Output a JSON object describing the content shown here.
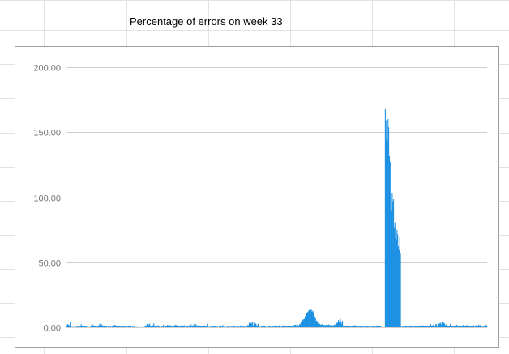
{
  "sheet": {
    "title_cell": "Percentage of errors on week 33"
  },
  "colors": {
    "series": "#1a8fe3",
    "gridline": "#cfcfcf",
    "cell_border": "#e2e2e2",
    "tick_text": "#757575",
    "chart_border": "#9e9e9e"
  },
  "chart_data": {
    "type": "bar",
    "title": "",
    "xlabel": "",
    "ylabel": "",
    "ylim": [
      0,
      200
    ],
    "yticks": [
      "0.00",
      "50.00",
      "100.00",
      "150.00",
      "200.00"
    ],
    "ytick_values": [
      0,
      50,
      100,
      150,
      200
    ],
    "grid": true,
    "legend": "none",
    "series": [
      {
        "values": [
          0.5,
          0.6,
          2.4,
          2.1,
          1.9,
          0.7,
          3.9,
          0.1,
          0.2,
          0,
          0.4,
          0.1,
          0,
          0.2,
          0.1,
          0.6,
          0.4,
          0.4,
          0.4,
          0.7,
          0.4,
          1,
          2.4,
          0.8,
          0.6,
          1.2,
          0.5,
          1.1,
          0.8,
          0.5,
          0,
          1.1,
          0.1,
          0.1,
          0,
          0.1,
          1.4,
          1.5,
          2.6,
          1.4,
          1.4,
          0.6,
          0.7,
          1.4,
          0.3,
          0.6,
          1.1,
          1.3,
          1.8,
          2.8,
          0.8,
          1.4,
          2.1,
          1.3,
          1.1,
          0.9,
          0.5,
          1.3,
          1.2,
          0.5,
          0.1,
          0.8,
          0.3,
          0.2,
          0.5,
          0.7,
          0,
          1,
          1.2,
          1.1,
          1.8,
          1.8,
          0.6,
          1.3,
          1.1,
          1.3,
          1,
          0.6,
          0.9,
          0.6,
          0.3,
          0.9,
          0.9,
          0.9,
          0.8,
          0.4,
          0.6,
          1.2,
          0.3,
          0.4,
          0.9,
          1.2,
          0.8,
          1.6,
          0.9,
          0,
          0.6,
          0.3,
          0.5,
          0.2,
          0.1,
          0.1,
          0.2,
          0.1,
          0.1,
          0.1,
          0,
          0,
          0,
          0,
          0,
          0.2,
          0,
          0.1,
          0.4,
          1.3,
          1,
          2.6,
          1.8,
          1.7,
          2,
          2.8,
          1,
          1.2,
          0.5,
          1.2,
          1.6,
          2.9,
          0.4,
          1.3,
          0.5,
          0.6,
          0.4,
          1.6,
          1.2,
          0.5,
          0.7,
          0.2,
          0.3,
          0.4,
          1,
          1.9,
          0.2,
          0.4,
          0.8,
          1.1,
          0.7,
          2,
          1.2,
          1.1,
          1.6,
          1.3,
          1.4,
          0.7,
          0.2,
          1.8,
          0.8,
          0.8,
          1.9,
          1.7,
          1.5,
          1.4,
          1.3,
          1.2,
          0.8,
          0.3,
          1.5,
          1.1,
          0.7,
          0.6,
          0.8,
          1.7,
          0.3,
          0.3,
          0.7,
          0.7,
          1.3,
          0.6,
          0.3,
          1.8,
          1.2,
          2.2,
          0.6,
          1.4,
          1.1,
          2.4,
          0.8,
          0.8,
          2.4,
          0.5,
          1.4,
          1.3,
          1.6,
          1.3,
          0.6,
          1,
          0.8,
          0.9,
          0.8,
          0.6,
          0.9,
          1.4,
          0.7,
          0.6,
          0.9,
          2.7,
          0.1,
          0.4,
          0.1,
          1.2,
          0.2,
          0.1,
          0.6,
          0.7,
          0.7,
          0.5,
          0.8,
          0.4,
          0.2,
          1,
          0,
          0.1,
          1.4,
          0.3,
          0.6,
          0.5,
          0.4,
          1.7,
          0.1,
          0.3,
          0.4,
          0.1,
          0.4,
          0,
          0.6,
          0.7,
          1.2,
          0.4,
          0.1,
          0.4,
          0.8,
          0,
          0.8,
          0.7,
          1,
          0.1,
          0.5,
          0.2,
          0.1,
          1,
          0.3,
          0.3,
          0.6,
          1.4,
          0.3,
          0.5,
          0.5,
          0.5,
          0.4,
          0.4,
          0,
          0.7,
          0.4,
          1.8,
          1.5,
          3.1,
          3.9,
          2.9,
          3.7,
          2.5,
          3.8,
          0.6,
          1.7,
          3.4,
          2.8,
          2.6,
          0.6,
          1.5,
          2.7,
          0.2,
          0.3,
          0,
          0.4,
          0.8,
          0.8,
          0.5,
          1.3,
          1.1,
          0.6,
          0.3,
          0.3,
          0.3,
          0.1,
          0.5,
          0.9,
          0.5,
          1.1,
          0.3,
          1.3,
          1.1,
          0.2,
          0.7,
          1.4,
          0.6,
          0.6,
          0.6,
          0.6,
          0.3,
          0.6,
          1.7,
          0.4,
          0.1,
          0.8,
          1.1,
          1.4,
          1,
          0.8,
          0.9,
          0.5,
          1.3,
          0.9,
          0.8,
          0.7,
          1.4,
          1,
          0.6,
          0.8,
          0.7,
          1.6,
          1.4,
          1.5,
          1.7,
          2,
          1.2,
          2.3,
          1.9,
          1.4,
          1.3,
          2.5,
          2.2,
          3.8,
          4.4,
          5.2,
          5.8,
          6.2,
          6.5,
          8.3,
          8.9,
          10.6,
          11.2,
          11.8,
          12.6,
          13.4,
          13.4,
          13.1,
          13.5,
          11.9,
          12.8,
          11.4,
          9.8,
          8.2,
          7.3,
          4.8,
          5.1,
          3.7,
          2.7,
          2.4,
          2.7,
          2.1,
          1.8,
          2.2,
          2.4,
          1.8,
          1.6,
          1.8,
          1.6,
          1.6,
          2,
          1.8,
          1.7,
          2.2,
          1.5,
          1.8,
          1.1,
          1.9,
          1.2,
          1.3,
          1.6,
          1.9,
          1.5,
          2.4,
          2.9,
          3.4,
          3.4,
          5.5,
          4.4,
          5.2,
          6.4,
          3.8,
          2.7,
          5,
          1.1,
          1.5,
          0.7,
          1,
          0.9,
          1.3,
          1.3,
          1.3,
          1.3,
          0.8,
          1.1,
          0.2,
          1,
          0.8,
          1.3,
          0.7,
          0.9,
          1.6,
          0.9,
          1.2,
          1.6,
          0.5,
          0.5,
          0.4,
          0.8,
          0.6,
          0.6,
          0.6,
          1.4,
          0.1,
          0.5,
          1,
          0.3,
          0.4,
          1.2,
          0.9,
          0.5,
          0.3,
          0.7,
          0.6,
          0.3,
          0.3,
          0.6,
          0.4,
          0.6,
          1,
          0.8,
          0.3,
          0.6,
          1.4,
          0.6,
          0.8,
          0.4,
          1.2,
          0.5,
          0.4,
          0,
          0,
          0,
          0,
          0,
          168.1,
          159.2,
          144.7,
          142.7,
          160.1,
          153.8,
          131.7,
          127.2,
          92,
          89.5,
          103.3,
          96.9,
          98.4,
          76.8,
          80.6,
          68.1,
          67.5,
          74.8,
          71.4,
          62.1,
          59.7,
          69.6,
          57.2,
          0.5,
          0.1,
          0.5,
          0.4,
          0.4,
          0.8,
          0.6,
          0.9,
          1.1,
          0.4,
          0.5,
          0.7,
          0.3,
          0.7,
          1.4,
          0.7,
          0.7,
          0.7,
          0.2,
          0.9,
          1,
          1.2,
          0.8,
          0.5,
          1.2,
          0.6,
          1,
          0.7,
          1.3,
          1.2,
          0.9,
          1.5,
          1.1,
          1.3,
          0.9,
          1.3,
          0.8,
          0.9,
          1.3,
          0.9,
          0.7,
          1.2,
          1.3,
          2.4,
          1.1,
          1,
          1.7,
          2.2,
          1,
          0.4,
          2.3,
          2.4,
          0.6,
          1.4,
          2.7,
          2.5,
          3.2,
          3.3,
          1.9,
          4.3,
          3.5,
          3.6,
          3.3,
          2.7,
          1.4,
          2.2,
          1.6,
          1.1,
          1.2,
          0.6,
          1.1,
          2.3,
          1.5,
          0.8,
          1.2,
          0.6,
          1.2,
          1.1,
          1.4,
          0.2,
          1.5,
          1.9,
          0.4,
          1.4,
          1,
          1.1,
          1.3,
          1.3,
          0.6,
          1.2,
          1.9,
          1.5,
          0.7,
          1.2,
          0.6,
          1.8,
          0.6,
          0.3,
          0.6,
          1.2,
          0.8,
          0.6,
          0.6,
          1.2,
          0.3,
          1.5,
          0.5,
          0.3,
          1.4,
          1.7,
          0.9,
          0.5,
          2,
          0.9,
          1.8,
          0.6,
          0.8,
          0.3,
          0.4,
          0.3,
          1.3,
          0.8,
          0.2,
          1.9,
          0.7
        ]
      }
    ]
  }
}
